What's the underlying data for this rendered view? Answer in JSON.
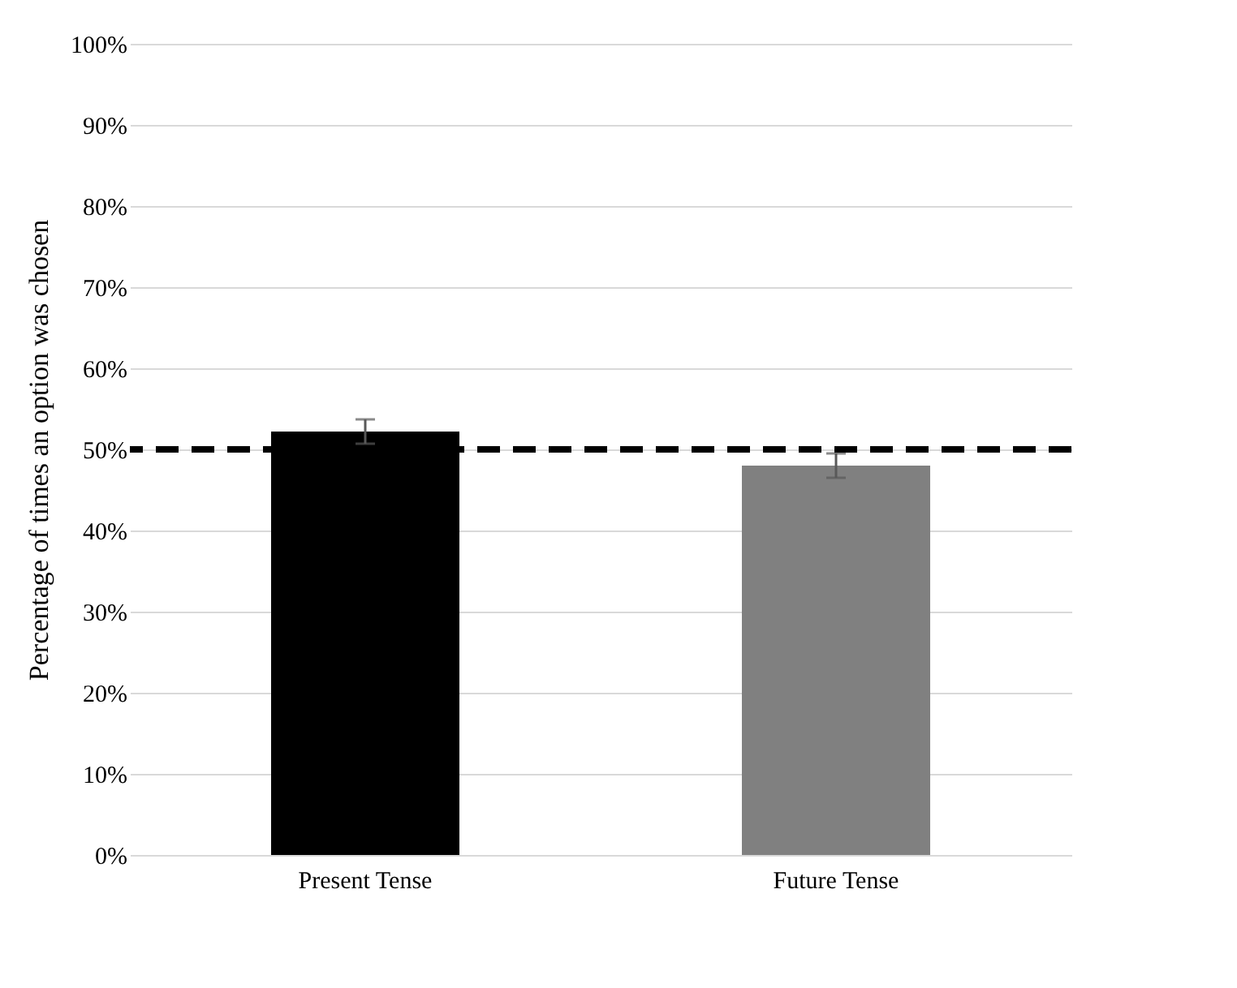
{
  "chart_data": {
    "type": "bar",
    "ylabel": "Percentage of times an option was chosen",
    "categories": [
      "Present Tense",
      "Future Tense"
    ],
    "values": [
      52.2,
      48.0
    ],
    "colors": [
      "#000000",
      "#808080"
    ],
    "errors": [
      1.5,
      1.5
    ],
    "ylim": [
      0,
      100
    ],
    "yticks": [
      {
        "value": 0,
        "label": "0%"
      },
      {
        "value": 10,
        "label": "10%"
      },
      {
        "value": 20,
        "label": "20%"
      },
      {
        "value": 30,
        "label": "30%"
      },
      {
        "value": 40,
        "label": "40%"
      },
      {
        "value": 50,
        "label": "50%"
      },
      {
        "value": 60,
        "label": "60%"
      },
      {
        "value": 70,
        "label": "70%"
      },
      {
        "value": 80,
        "label": "80%"
      },
      {
        "value": 90,
        "label": "90%"
      },
      {
        "value": 100,
        "label": "100%"
      }
    ],
    "ref_lines": [
      {
        "axis": "y",
        "value": 50,
        "color": "#000000",
        "line_style": "dashed"
      }
    ],
    "grid": "y",
    "legend": false
  }
}
